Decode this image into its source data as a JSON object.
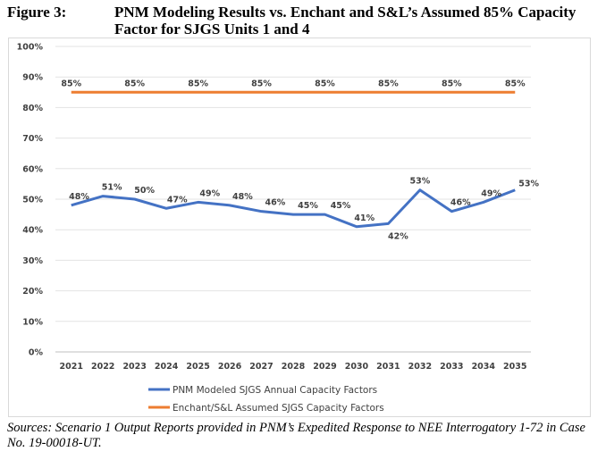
{
  "figure": {
    "label": "Figure 3:",
    "title": "PNM Modeling Results vs. Enchant and S&L’s Assumed 85% Capacity Factor for SJGS Units 1 and 4",
    "source": "Sources: Scenario 1 Output Reports provided in PNM’s Expedited Response to NEE Interrogatory 1-72 in Case No. 19-00018-UT."
  },
  "chart_data": {
    "type": "line",
    "title": "",
    "xlabel": "",
    "ylabel": "",
    "categories": [
      "2021",
      "2022",
      "2023",
      "2024",
      "2025",
      "2026",
      "2027",
      "2028",
      "2029",
      "2030",
      "2031",
      "2032",
      "2033",
      "2034",
      "2035"
    ],
    "ylim": [
      0,
      100
    ],
    "yticks": [
      "0%",
      "10%",
      "20%",
      "30%",
      "40%",
      "50%",
      "60%",
      "70%",
      "80%",
      "90%",
      "100%"
    ],
    "grid": true,
    "legend_position": "bottom",
    "series": [
      {
        "name": "PNM Modeled SJGS Annual Capacity Factors",
        "color": "#4472c4",
        "values": [
          48,
          51,
          50,
          47,
          49,
          48,
          46,
          45,
          45,
          41,
          42,
          53,
          46,
          49,
          53
        ],
        "labels": [
          "48%",
          "51%",
          "50%",
          "47%",
          "49%",
          "48%",
          "46%",
          "45%",
          "45%",
          "41%",
          "42%",
          "53%",
          "46%",
          "49%",
          "53%"
        ]
      },
      {
        "name": "Enchant/S&L Assumed SJGS Capacity Factors",
        "color": "#ed7d31",
        "values": [
          85,
          85,
          85,
          85,
          85,
          85,
          85,
          85,
          85,
          85,
          85,
          85,
          85,
          85,
          85
        ],
        "labels": [
          "85%",
          "",
          "85%",
          "",
          "85%",
          "",
          "85%",
          "",
          "85%",
          "",
          "85%",
          "",
          "85%",
          "",
          "85%"
        ]
      }
    ]
  }
}
